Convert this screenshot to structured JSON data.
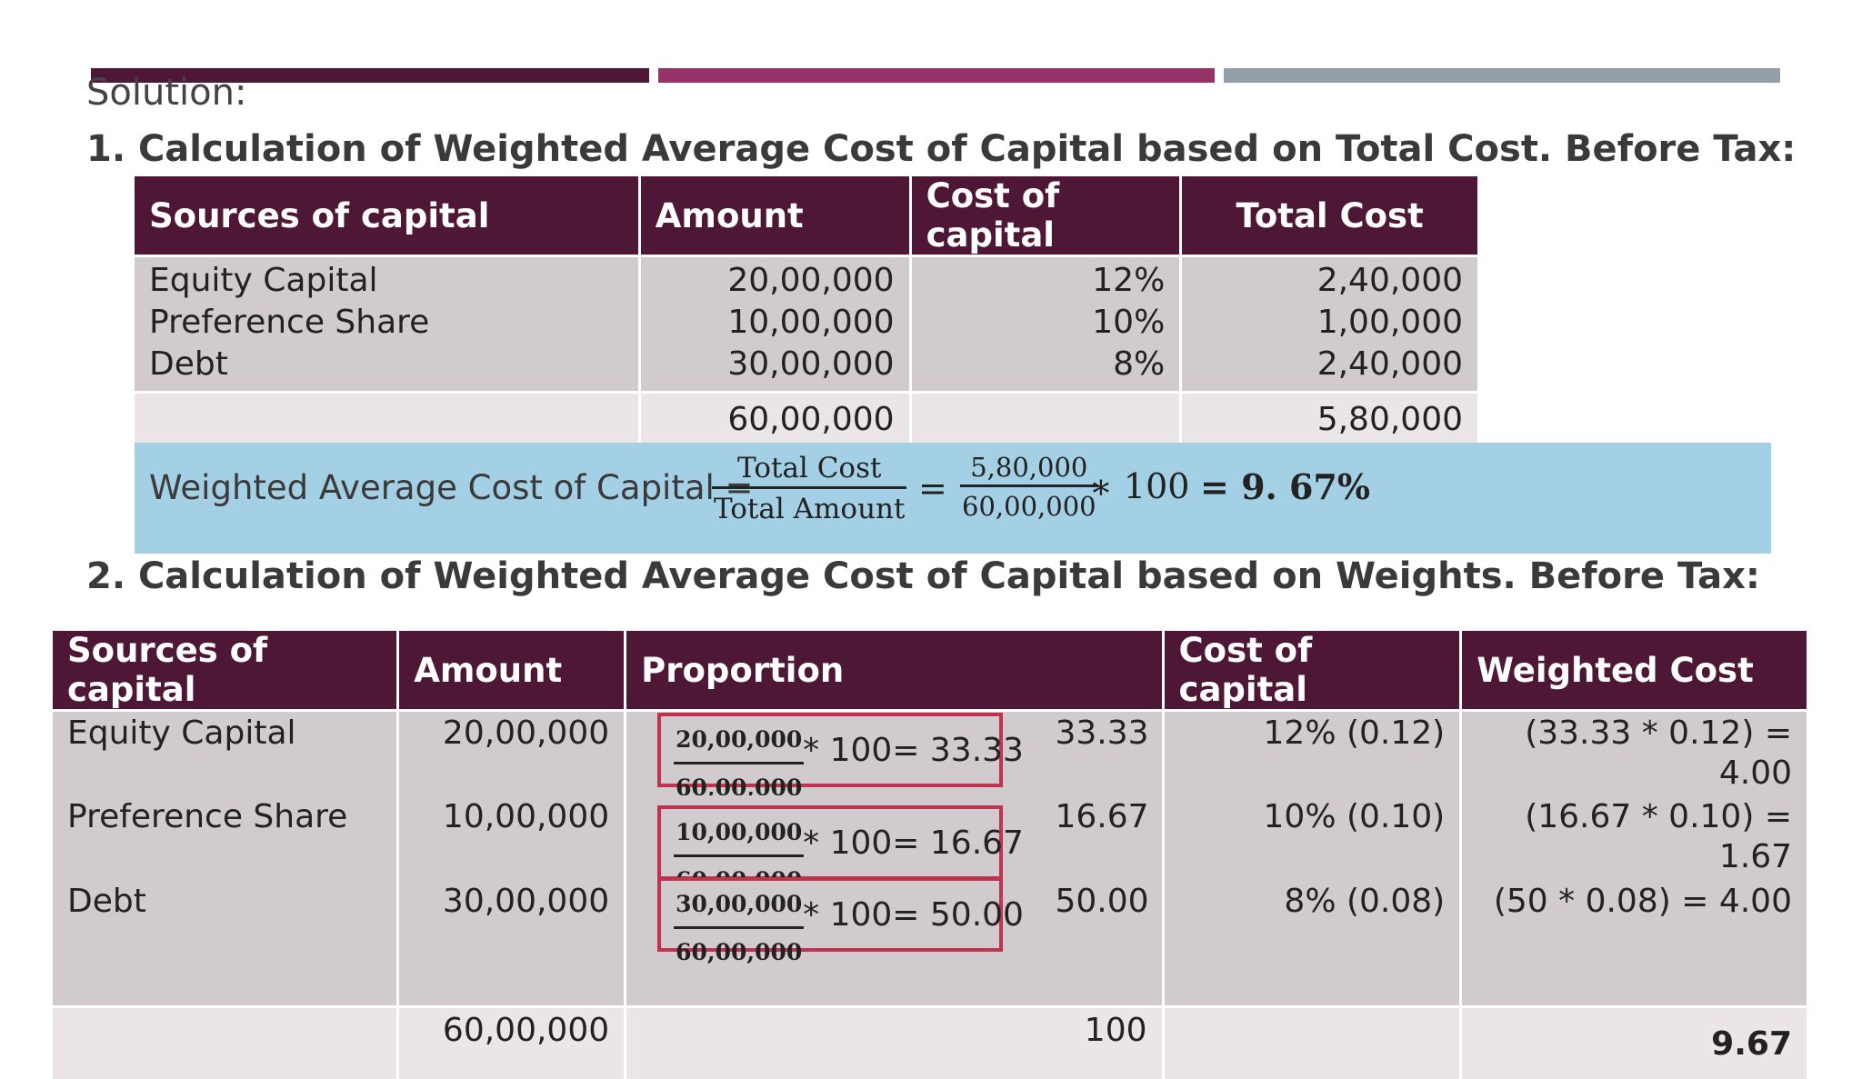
{
  "slide": {
    "solution_label": "Solution:",
    "heading1": "1. Calculation of Weighted Average Cost of Capital based on Total Cost. Before Tax:",
    "heading2": "2. Calculation of Weighted Average Cost of Capital based on Weights. Before Tax:",
    "colors": {
      "dark_plum": "#4e1735",
      "magenta": "#973268",
      "slate": "#939fa8",
      "light_blue": "#a4d0e5",
      "red_border": "#c0334f"
    }
  },
  "table1": {
    "headers": [
      "Sources of capital",
      "Amount",
      "Cost of capital",
      "Total Cost"
    ],
    "rows": [
      {
        "source": "Equity Capital",
        "amount": "20,00,000",
        "cost": "12%",
        "total": "2,40,000"
      },
      {
        "source": "Preference Share",
        "amount": "10,00,000",
        "cost": "10%",
        "total": "1,00,000"
      },
      {
        "source": "Debt",
        "amount": "30,00,000",
        "cost": "8%",
        "total": "2,40,000"
      }
    ],
    "totals": {
      "amount": "60,00,000",
      "total": "5,80,000"
    }
  },
  "formula": {
    "label": "Weighted Average Cost of Capital =",
    "num1": "Total Cost",
    "den1": "Total Amount",
    "equals": "=",
    "num2": "5,80,000",
    "den2": "60,00,000",
    "times": "∗ 100",
    "result": "= 9. 67%"
  },
  "table2": {
    "headers": [
      "Sources of capital",
      "Amount",
      "Proportion",
      "Cost of capital",
      "Weighted Cost"
    ],
    "rows": [
      {
        "source": "Equity Capital",
        "amount": "20,00,000",
        "frac_num": "20,00,000",
        "frac_den": "60,00,000",
        "expr": "* 100= 33.33",
        "proportion": "33.33",
        "cost": "12% (0.12)",
        "weighted": "(33.33 * 0.12) = 4.00"
      },
      {
        "source": "Preference Share",
        "amount": "10,00,000",
        "frac_num": "10,00,000",
        "frac_den": "60,00,000",
        "expr": "* 100= 16.67",
        "proportion": "16.67",
        "cost": "10% (0.10)",
        "weighted": "(16.67 * 0.10) = 1.67"
      },
      {
        "source": "Debt",
        "amount": "30,00,000",
        "frac_num": "30,00,000",
        "frac_den": "60,00,000",
        "expr": "* 100= 50.00",
        "proportion": "50.00",
        "cost": "8% (0.08)",
        "weighted": "(50 * 0.08) = 4.00"
      }
    ],
    "totals": {
      "amount": "60,00,000",
      "proportion": "100",
      "weighted": "9.67"
    }
  }
}
